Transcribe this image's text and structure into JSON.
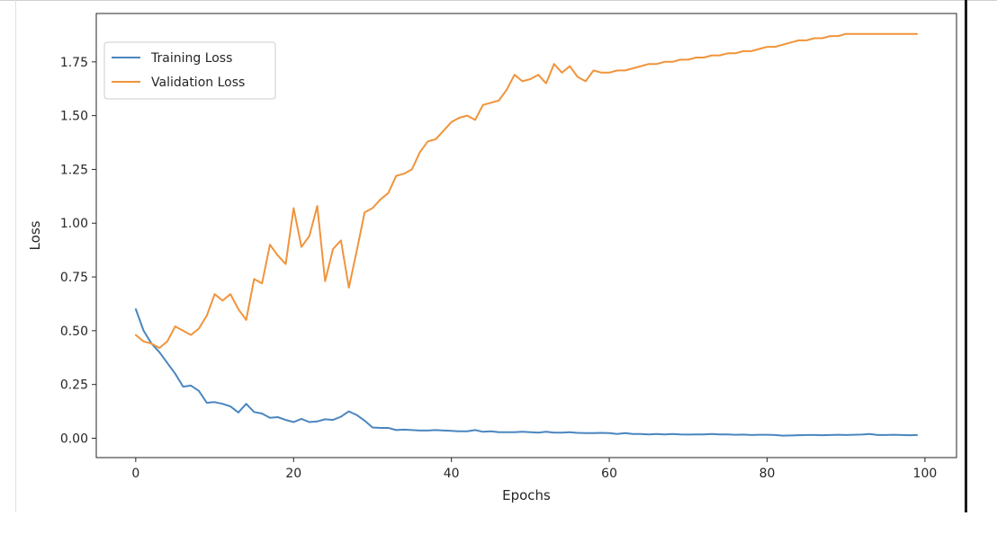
{
  "chart_data": {
    "type": "line",
    "title": "",
    "xlabel": "Epochs",
    "ylabel": "Loss",
    "xlim": [
      -5,
      104
    ],
    "ylim": [
      -0.09,
      1.975
    ],
    "xticks": [
      0,
      20,
      40,
      60,
      80,
      100
    ],
    "yticks": [
      0.0,
      0.25,
      0.5,
      0.75,
      1.0,
      1.25,
      1.5,
      1.75
    ],
    "xtick_labels": [
      "0",
      "20",
      "40",
      "60",
      "80",
      "100"
    ],
    "ytick_labels": [
      "0.00",
      "0.25",
      "0.50",
      "0.75",
      "1.00",
      "1.25",
      "1.50",
      "1.75"
    ],
    "grid": false,
    "legend_position": "top-left",
    "colors": {
      "train": "#4a86bf",
      "val": "#f0943b"
    },
    "series": [
      {
        "name": "Training Loss",
        "x": [
          0,
          1,
          2,
          3,
          4,
          5,
          6,
          7,
          8,
          9,
          10,
          11,
          12,
          13,
          14,
          15,
          16,
          17,
          18,
          19,
          20,
          21,
          22,
          23,
          24,
          25,
          26,
          27,
          28,
          29,
          30,
          31,
          32,
          33,
          34,
          35,
          36,
          37,
          38,
          39,
          40,
          41,
          42,
          43,
          44,
          45,
          46,
          47,
          48,
          49,
          50,
          51,
          52,
          53,
          54,
          55,
          56,
          57,
          58,
          59,
          60,
          61,
          62,
          63,
          64,
          65,
          66,
          67,
          68,
          69,
          70,
          71,
          72,
          73,
          74,
          75,
          76,
          77,
          78,
          79,
          80,
          81,
          82,
          83,
          84,
          85,
          86,
          87,
          88,
          89,
          90,
          91,
          92,
          93,
          94,
          95,
          96,
          97,
          98,
          99
        ],
        "values": [
          0.6,
          0.5,
          0.44,
          0.4,
          0.35,
          0.3,
          0.24,
          0.245,
          0.22,
          0.165,
          0.168,
          0.16,
          0.148,
          0.12,
          0.16,
          0.122,
          0.115,
          0.095,
          0.098,
          0.085,
          0.075,
          0.09,
          0.075,
          0.078,
          0.088,
          0.085,
          0.1,
          0.125,
          0.108,
          0.082,
          0.05,
          0.048,
          0.048,
          0.038,
          0.04,
          0.038,
          0.036,
          0.036,
          0.038,
          0.036,
          0.034,
          0.032,
          0.032,
          0.038,
          0.03,
          0.032,
          0.028,
          0.028,
          0.028,
          0.03,
          0.028,
          0.026,
          0.03,
          0.026,
          0.026,
          0.028,
          0.025,
          0.024,
          0.024,
          0.025,
          0.024,
          0.02,
          0.024,
          0.02,
          0.02,
          0.018,
          0.02,
          0.018,
          0.02,
          0.018,
          0.017,
          0.018,
          0.018,
          0.02,
          0.018,
          0.018,
          0.016,
          0.017,
          0.015,
          0.016,
          0.016,
          0.015,
          0.012,
          0.013,
          0.014,
          0.015,
          0.015,
          0.014,
          0.015,
          0.016,
          0.015,
          0.016,
          0.017,
          0.02,
          0.015,
          0.015,
          0.016,
          0.015,
          0.014,
          0.015
        ]
      },
      {
        "name": "Validation Loss",
        "x": [
          0,
          1,
          2,
          3,
          4,
          5,
          6,
          7,
          8,
          9,
          10,
          11,
          12,
          13,
          14,
          15,
          16,
          17,
          18,
          19,
          20,
          21,
          22,
          23,
          24,
          25,
          26,
          27,
          28,
          29,
          30,
          31,
          32,
          33,
          34,
          35,
          36,
          37,
          38,
          39,
          40,
          41,
          42,
          43,
          44,
          45,
          46,
          47,
          48,
          49,
          50,
          51,
          52,
          53,
          54,
          55,
          56,
          57,
          58,
          59,
          60,
          61,
          62,
          63,
          64,
          65,
          66,
          67,
          68,
          69,
          70,
          71,
          72,
          73,
          74,
          75,
          76,
          77,
          78,
          79,
          80,
          81,
          82,
          83,
          84,
          85,
          86,
          87,
          88,
          89,
          90,
          91,
          92,
          93,
          94,
          95,
          96,
          97,
          98,
          99
        ],
        "values": [
          0.48,
          0.45,
          0.44,
          0.42,
          0.45,
          0.52,
          0.5,
          0.48,
          0.51,
          0.57,
          0.67,
          0.64,
          0.67,
          0.6,
          0.55,
          0.74,
          0.72,
          0.9,
          0.85,
          0.81,
          1.07,
          0.89,
          0.94,
          1.08,
          0.73,
          0.88,
          0.92,
          0.7,
          0.87,
          1.05,
          1.07,
          1.11,
          1.14,
          1.22,
          1.23,
          1.25,
          1.33,
          1.38,
          1.39,
          1.43,
          1.47,
          1.49,
          1.5,
          1.48,
          1.55,
          1.56,
          1.57,
          1.62,
          1.69,
          1.66,
          1.67,
          1.69,
          1.65,
          1.74,
          1.7,
          1.73,
          1.68,
          1.66,
          1.71,
          1.7,
          1.7,
          1.71,
          1.71,
          1.72,
          1.73,
          1.74,
          1.74,
          1.75,
          1.75,
          1.76,
          1.76,
          1.77,
          1.77,
          1.78,
          1.78,
          1.79,
          1.79,
          1.8,
          1.8,
          1.81,
          1.82,
          1.82,
          1.83,
          1.84,
          1.85,
          1.85,
          1.86,
          1.86,
          1.87,
          1.87,
          1.88,
          1.88,
          1.88,
          1.88,
          1.88,
          1.88,
          1.88,
          1.88,
          1.88,
          1.88
        ]
      }
    ]
  }
}
